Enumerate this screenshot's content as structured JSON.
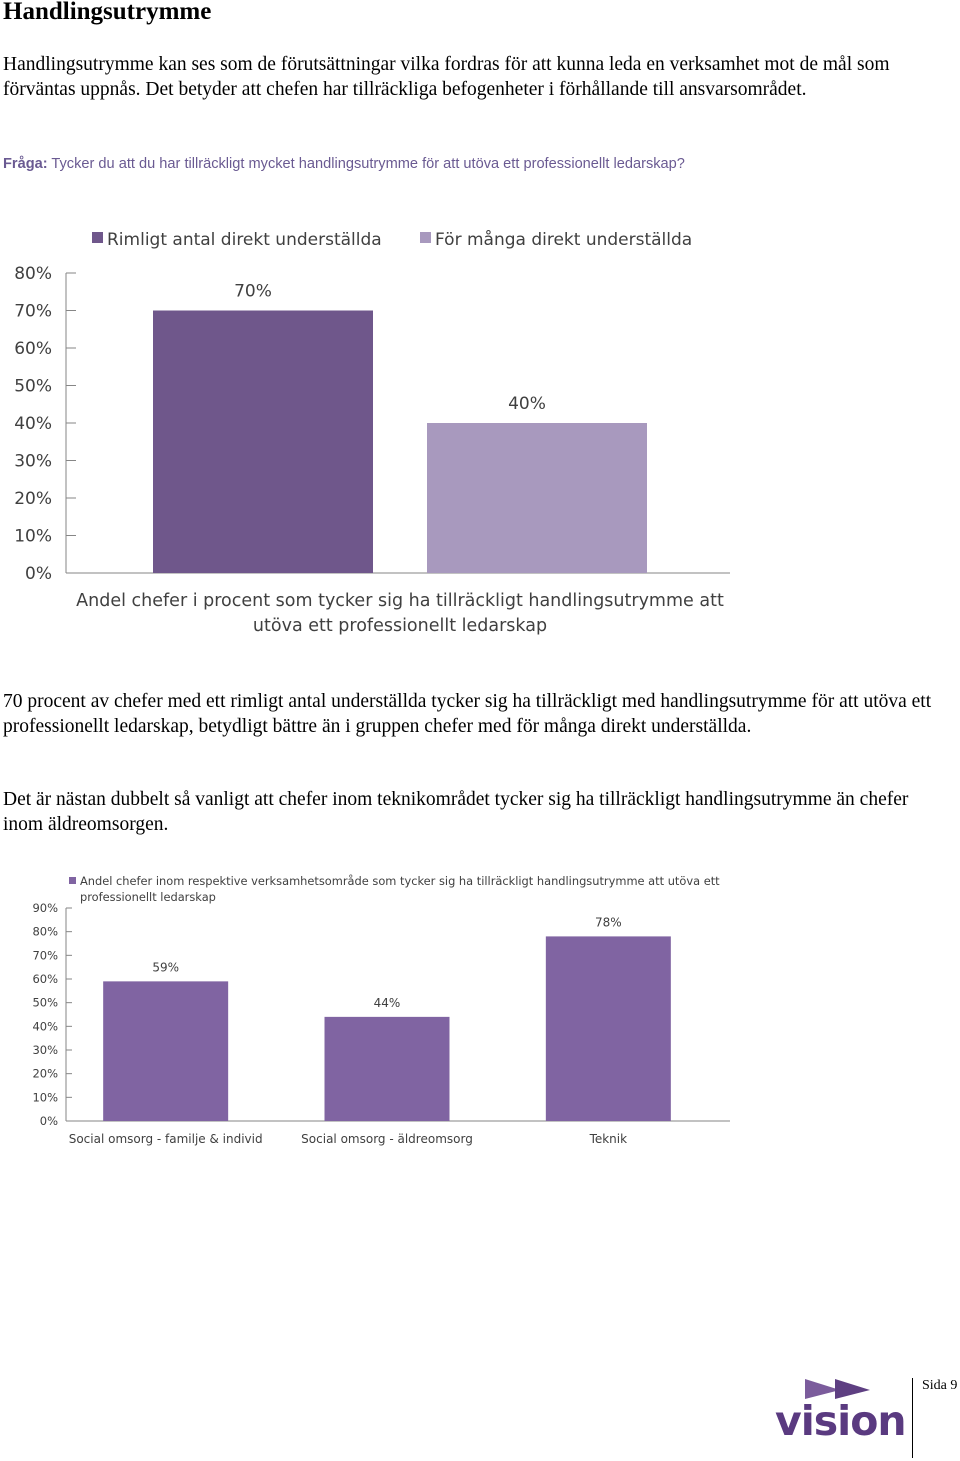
{
  "heading": "Handlingsutrymme",
  "intro_paragraph": "Handlingsutrymme kan ses som de förutsättningar vilka fordras för att kunna leda en verksamhet mot de mål som förväntas uppnås. Det betyder att chefen har tillräckliga befogenheter i förhållande till ansvarsområdet.",
  "question": {
    "label": "Fråga:",
    "text": "Tycker du att du har tillräckligt mycket handlingsutrymme för att utöva ett professionellt ledarskap?"
  },
  "paragraph_2": "70 procent av chefer med ett rimligt antal underställda tycker sig ha tillräckligt med handlingsutrymme för att utöva ett professionellt ledarskap, betydligt bättre än i gruppen chefer med för många direkt underställda.",
  "paragraph_3": "Det är nästan dubbelt så vanligt att chefer inom teknikområdet tycker sig ha tillräckligt handlingsutrymme än chefer inom äldreomsorgen.",
  "footer": {
    "logo_text": "vision",
    "page_label": "Sida 9"
  },
  "colors": {
    "dark_purple": "#6f578b",
    "light_purple": "#a899be",
    "mid_purple": "#8064a2",
    "question_text": "#6a5a92"
  },
  "chart_data": [
    {
      "type": "bar",
      "series": [
        {
          "name": "Rimligt antal direkt underställda",
          "values": [
            70
          ],
          "color": "#6f578b"
        },
        {
          "name": "För många direkt underställda",
          "values": [
            40
          ],
          "color": "#a899be"
        }
      ],
      "value_labels": [
        "70%",
        "40%"
      ],
      "xlabel": "Andel chefer i procent som tycker sig ha tillräckligt handlingsutrymme att utöva ett professionellt ledarskap",
      "xlabel_lines": [
        "Andel chefer i procent som tycker sig ha tillräckligt handlingsutrymme att",
        "utöva ett professionellt ledarskap"
      ],
      "ylim": [
        0,
        80
      ],
      "yticks": [
        "0%",
        "10%",
        "20%",
        "30%",
        "40%",
        "50%",
        "60%",
        "70%",
        "80%"
      ],
      "legend": "top",
      "grid": false
    },
    {
      "type": "bar",
      "categories": [
        "Social omsorg - familje & individ",
        "Social omsorg - äldreomsorg",
        "Teknik"
      ],
      "series": [
        {
          "name": "Andel chefer inom respektive verksamhetsområde som tycker sig ha tillräckligt handlingsutrymme att utöva ett professionellt ledarskap",
          "values": [
            59,
            44,
            78
          ],
          "color": "#8064a2"
        }
      ],
      "legend_lines": [
        "Andel chefer inom respektive verksamhetsområde som tycker sig ha tillräckligt handlingsutrymme att utöva ett",
        "professionellt ledarskap"
      ],
      "value_labels": [
        "59%",
        "44%",
        "78%"
      ],
      "ylim": [
        0,
        90
      ],
      "yticks": [
        "0%",
        "10%",
        "20%",
        "30%",
        "40%",
        "50%",
        "60%",
        "70%",
        "80%",
        "90%"
      ],
      "legend": "top",
      "grid": false
    }
  ]
}
